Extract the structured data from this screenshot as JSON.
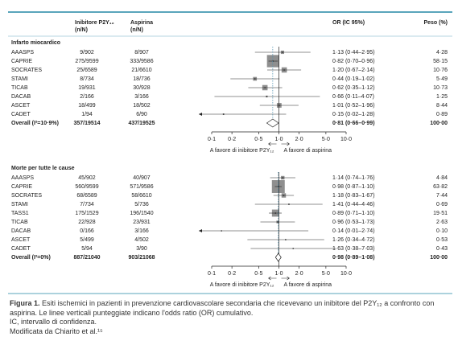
{
  "header": {
    "p2y12_title": "Inibitore P2Y₁₂",
    "p2y12_sub": "(n/N)",
    "aspirin_title": "Aspirina",
    "aspirin_sub": "(n/N)",
    "or": "OR (IC 95%)",
    "weight": "Peso (%)"
  },
  "chart_data": [
    {
      "type": "forest",
      "title": "Infarto miocardico",
      "studies": [
        "AAASPS",
        "CAPRIE",
        "SOCRATES",
        "STAMI",
        "TICAB",
        "DACAB",
        "ASCET",
        "CADET"
      ],
      "p2y12": [
        "9/902",
        "275/9599",
        "25/6589",
        "8/734",
        "19/931",
        "2/166",
        "18/499",
        "1/94"
      ],
      "aspirin": [
        "8/907",
        "333/9586",
        "21/6610",
        "18/736",
        "30/928",
        "3/166",
        "18/502",
        "6/90"
      ],
      "or": [
        1.13,
        0.82,
        1.2,
        0.44,
        0.62,
        0.66,
        1.01,
        0.15
      ],
      "ci_low": [
        0.44,
        0.7,
        0.67,
        0.19,
        0.35,
        0.11,
        0.52,
        0.02
      ],
      "ci_high": [
        2.95,
        0.96,
        2.14,
        1.02,
        1.12,
        4.07,
        1.96,
        1.28
      ],
      "or_labels": [
        "1·13 (0·44–2·95)",
        "0·82 (0·70–0·96)",
        "1·20 (0·67–2·14)",
        "0·44 (0·19–1·02)",
        "0·62 (0·35–1·12)",
        "0·66 (0·11–4·07)",
        "1·01 (0·52–1·96)",
        "0·15 (0·02–1·28)"
      ],
      "weights": [
        4.28,
        58.15,
        10.76,
        5.49,
        10.73,
        1.25,
        8.44,
        0.89
      ],
      "weight_labels": [
        "4·28",
        "58·15",
        "10·76",
        "5·49",
        "10·73",
        "1·25",
        "8·44",
        "0·89"
      ],
      "overall": {
        "label": "Overall (I²=10·9%)",
        "p2y12": "357/19514",
        "aspirin": "437/19525",
        "or": 0.81,
        "ci_low": 0.66,
        "ci_high": 0.99,
        "or_label": "0·81 (0·66–0·99)",
        "weight_label": "100·00"
      },
      "xlim": [
        0.1,
        10
      ],
      "log_x": true,
      "reference_line": 1,
      "xticks": [
        {
          "value": 0.1,
          "label": "0·1"
        },
        {
          "value": 0.2,
          "label": "0·2"
        },
        {
          "value": 0.5,
          "label": "0·5"
        },
        {
          "value": 1,
          "label": "1·0"
        },
        {
          "value": 2,
          "label": "2·0"
        },
        {
          "value": 5,
          "label": "5·0"
        },
        {
          "value": 10,
          "label": "10·0"
        }
      ],
      "left_label": "A favore di inibitore P2Y₁₂",
      "right_label": "A favore di aspirina",
      "color": "#8f8f8f"
    },
    {
      "type": "forest",
      "title": "Morte per tutte le cause",
      "studies": [
        "AAASPS",
        "CAPRIE",
        "SOCRATES",
        "STAMI",
        "TASS1",
        "TICAB",
        "DACAB",
        "ASCET",
        "CADET"
      ],
      "p2y12": [
        "45/902",
        "560/9599",
        "68/6589",
        "7/734",
        "175/1529",
        "22/928",
        "0/166",
        "5/499",
        "5/94"
      ],
      "aspirin": [
        "40/907",
        "571/9586",
        "58/6610",
        "5/736",
        "196/1540",
        "23/931",
        "3/166",
        "4/502",
        "3/90"
      ],
      "or": [
        1.14,
        0.98,
        1.18,
        1.41,
        0.89,
        0.96,
        0.14,
        1.26,
        1.63
      ],
      "ci_low": [
        0.74,
        0.87,
        0.83,
        0.44,
        0.71,
        0.53,
        0.01,
        0.34,
        0.38
      ],
      "ci_high": [
        1.76,
        1.1,
        1.67,
        4.46,
        1.1,
        1.73,
        2.74,
        4.72,
        7.03
      ],
      "or_labels": [
        "1·14 (0·74–1·76)",
        "0·98 (0·87–1·10)",
        "1·18 (0·83–1·67)",
        "1·41 (0·44–4·46)",
        "0·89 (0·71–1·10)",
        "0·96 (0·53–1·73)",
        "0·14 (0·01–2·74)",
        "1·26 (0·34–4·72)",
        "1·63 (0·38–7·03)"
      ],
      "weights": [
        4.84,
        63.82,
        7.44,
        0.69,
        19.51,
        2.63,
        0.1,
        0.53,
        0.43
      ],
      "weight_labels": [
        "4·84",
        "63·82",
        "7·44",
        "0·69",
        "19·51",
        "2·63",
        "0·10",
        "0·53",
        "0·43"
      ],
      "overall": {
        "label": "Overall (I²=0%)",
        "p2y12": "887/21040",
        "aspirin": "903/21068",
        "or": 0.98,
        "ci_low": 0.89,
        "ci_high": 1.08,
        "or_label": "0·98 (0·89–1·08)",
        "weight_label": "100·00"
      },
      "xlim": [
        0.1,
        10
      ],
      "log_x": true,
      "reference_line": 1,
      "xticks": [
        {
          "value": 0.1,
          "label": "0·1"
        },
        {
          "value": 0.2,
          "label": "0·2"
        },
        {
          "value": 0.5,
          "label": "0·5"
        },
        {
          "value": 1,
          "label": "1·0"
        },
        {
          "value": 2,
          "label": "2·0"
        },
        {
          "value": 5,
          "label": "5·0"
        },
        {
          "value": 10,
          "label": "10·0"
        }
      ],
      "left_label": "A favore di inibitore P2Y₁₂",
      "right_label": "A favore di aspirina",
      "color": "#8f8f8f"
    }
  ],
  "caption": {
    "figure_label": "Figura 1.",
    "text": "Esiti ischemici in pazienti in prevenzione cardiovascolare secondaria che ricevevano un inibitore del P2Y₁₂ a confronto con aspirina. Le linee verticali punteggiate indicano l'odds ratio (OR) cumulativo.",
    "note": "IC, intervallo di confidenza.",
    "source": "Modificata da Chiarito et al.¹⁵"
  }
}
